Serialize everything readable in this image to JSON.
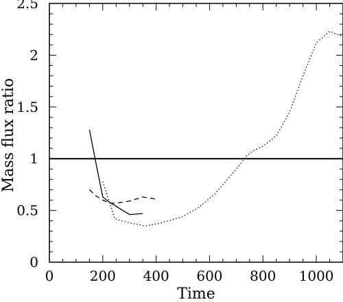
{
  "chart_data": {
    "type": "line",
    "title": "",
    "xlabel": "Time",
    "ylabel": "Mass flux ratio",
    "xlim": [
      0,
      1100
    ],
    "ylim": [
      0,
      2.5
    ],
    "xticks": [
      0,
      200,
      400,
      600,
      800,
      1000
    ],
    "yticks": [
      0,
      0.5,
      1,
      1.5,
      2,
      2.5
    ],
    "xtick_labels": [
      "0",
      "200",
      "400",
      "600",
      "800",
      "1000"
    ],
    "ytick_labels": [
      "0",
      "0.5",
      "1",
      "1.5",
      "2",
      "2.5"
    ],
    "grid": false,
    "legend": "none",
    "reference_line": {
      "y": 1.0,
      "style": "solid"
    },
    "series": [
      {
        "style": "solid",
        "x": [
          150,
          175,
          200,
          225,
          250,
          300,
          350
        ],
        "y": [
          1.28,
          0.95,
          0.63,
          0.58,
          0.54,
          0.46,
          0.47
        ]
      },
      {
        "style": "dashed",
        "x": [
          150,
          175,
          200,
          225,
          250,
          275,
          300,
          325,
          350,
          375,
          400
        ],
        "y": [
          0.7,
          0.64,
          0.6,
          0.57,
          0.57,
          0.58,
          0.59,
          0.61,
          0.63,
          0.62,
          0.61
        ]
      },
      {
        "style": "dotted",
        "x": [
          200,
          220,
          245,
          300,
          360,
          420,
          500,
          560,
          620,
          660,
          700,
          740,
          760,
          800,
          850,
          900,
          950,
          1000,
          1050,
          1100
        ],
        "y": [
          0.78,
          0.62,
          0.42,
          0.38,
          0.35,
          0.38,
          0.44,
          0.53,
          0.66,
          0.78,
          0.9,
          1.03,
          1.07,
          1.12,
          1.22,
          1.45,
          1.8,
          2.12,
          2.23,
          2.18
        ]
      }
    ]
  }
}
